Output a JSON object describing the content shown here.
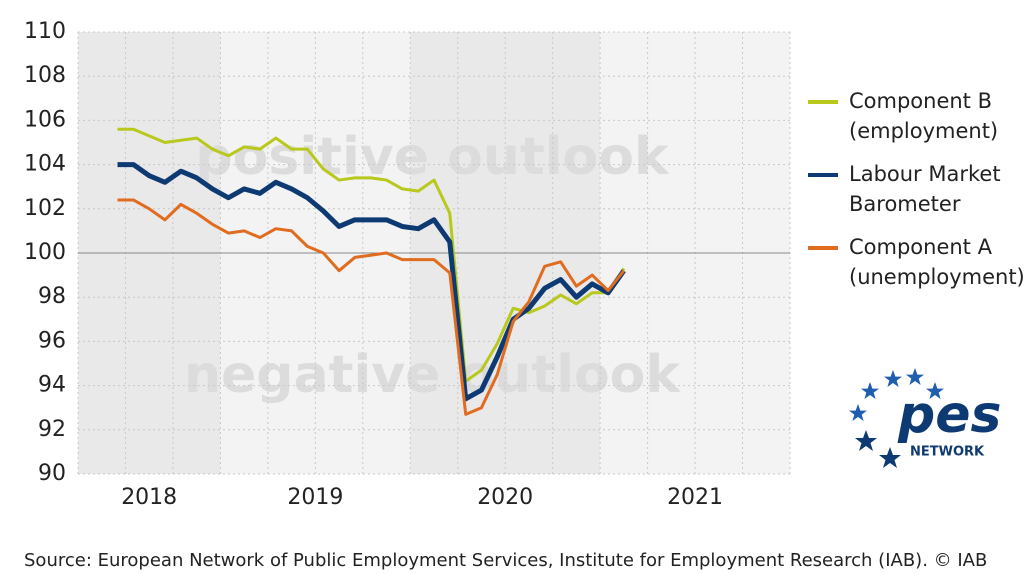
{
  "chart_data": {
    "type": "line",
    "annotations": [
      "positive outlook",
      "negative outlook"
    ],
    "x": [
      2018.458,
      2018.542,
      2018.625,
      2018.708,
      2018.792,
      2018.875,
      2018.958,
      2019.042,
      2019.125,
      2019.208,
      2019.292,
      2019.375,
      2019.458,
      2019.542,
      2019.625,
      2019.708,
      2019.792,
      2019.875,
      2019.958,
      2020.042,
      2020.125,
      2020.208,
      2020.292,
      2020.375,
      2020.458,
      2020.542,
      2020.625,
      2020.708,
      2020.792,
      2020.875,
      2020.958,
      2021.042,
      2021.125
    ],
    "series": [
      {
        "name": "Component B (employment)",
        "color": "#b8c81c",
        "values": [
          105.6,
          105.6,
          105.3,
          105.0,
          105.1,
          105.2,
          104.7,
          104.4,
          104.8,
          104.7,
          105.2,
          104.7,
          104.7,
          103.8,
          103.3,
          103.4,
          103.4,
          103.3,
          102.9,
          102.8,
          103.3,
          101.8,
          94.2,
          94.7,
          95.9,
          97.5,
          97.3,
          97.6,
          98.1,
          97.7,
          98.2,
          98.2,
          99.3
        ]
      },
      {
        "name": "Labour Market Barometer",
        "color": "#0e3a73",
        "values": [
          104.0,
          104.0,
          103.5,
          103.2,
          103.7,
          103.4,
          102.9,
          102.5,
          102.9,
          102.7,
          103.2,
          102.9,
          102.5,
          101.9,
          101.2,
          101.5,
          101.5,
          101.5,
          101.2,
          101.1,
          101.5,
          100.5,
          93.4,
          93.8,
          95.3,
          97.0,
          97.5,
          98.4,
          98.8,
          98.0,
          98.6,
          98.2,
          99.2
        ]
      },
      {
        "name": "Component A (unemployment)",
        "color": "#e06c1f",
        "values": [
          102.4,
          102.4,
          102.0,
          101.5,
          102.2,
          101.8,
          101.3,
          100.9,
          101.0,
          100.7,
          101.1,
          101.0,
          100.3,
          100.0,
          99.2,
          99.8,
          99.9,
          100.0,
          99.7,
          99.7,
          99.7,
          99.1,
          92.7,
          93.0,
          94.5,
          96.9,
          97.8,
          99.4,
          99.6,
          98.5,
          99.0,
          98.3,
          99.2
        ]
      }
    ],
    "xlim": [
      2018.25,
      2022.0
    ],
    "xticks": [
      {
        "value": 2018.625,
        "label": "2018"
      },
      {
        "value": 2019.5,
        "label": "2019"
      },
      {
        "value": 2020.5,
        "label": "2020"
      },
      {
        "value": 2021.5,
        "label": "2021"
      }
    ],
    "ylim": [
      90,
      110
    ],
    "yticks": [
      90,
      92,
      94,
      96,
      98,
      100,
      102,
      104,
      106,
      108,
      110
    ],
    "reference_line": 100,
    "grid": true,
    "legend": "right",
    "source": "Source: European Network of Public Employment Services, Institute for Employment Research (IAB).  © IAB",
    "logo": {
      "text": "pes",
      "subtext": "NETWORK"
    }
  }
}
